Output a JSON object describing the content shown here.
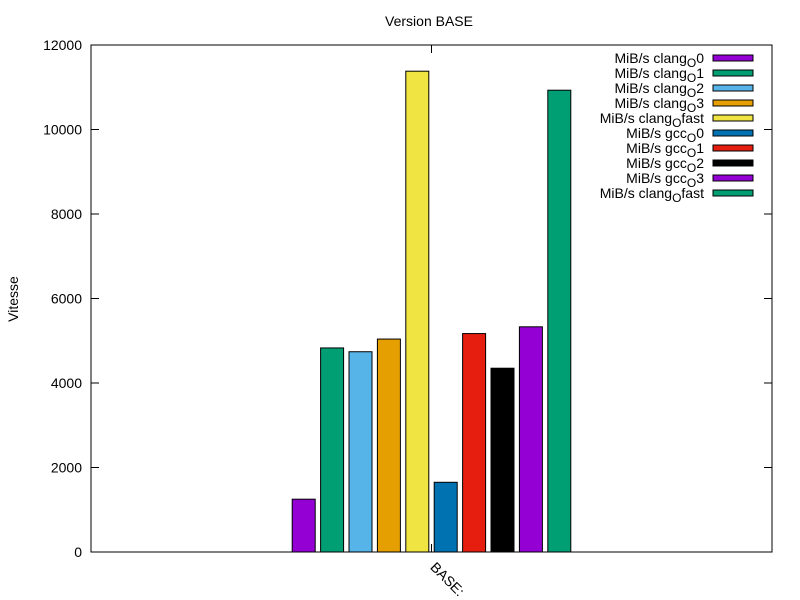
{
  "chart_data": {
    "type": "bar",
    "title": "Version BASE",
    "xlabel": "",
    "ylabel": "Vitesse",
    "categories": [
      "BASE:"
    ],
    "ylim": [
      0,
      12000
    ],
    "yticks": [
      0,
      2000,
      4000,
      6000,
      8000,
      10000,
      12000
    ],
    "ytick_labels": [
      "0",
      "2000",
      "4000",
      "6000",
      "8000",
      "10000",
      "12000"
    ],
    "grid": false,
    "legend_position": "top-right",
    "series": [
      {
        "name": "MiB/s clangO0",
        "legend": {
          "base": "MiB/s clang",
          "sub": "O",
          "suffix": "0"
        },
        "color": "#9400d3",
        "values": [
          1250
        ]
      },
      {
        "name": "MiB/s clangO1",
        "legend": {
          "base": "MiB/s clang",
          "sub": "O",
          "suffix": "1"
        },
        "color": "#009e73",
        "values": [
          4830
        ]
      },
      {
        "name": "MiB/s clangO2",
        "legend": {
          "base": "MiB/s clang",
          "sub": "O",
          "suffix": "2"
        },
        "color": "#56b4e9",
        "values": [
          4740
        ]
      },
      {
        "name": "MiB/s clangO3",
        "legend": {
          "base": "MiB/s clang",
          "sub": "O",
          "suffix": "3"
        },
        "color": "#e69f00",
        "values": [
          5040
        ]
      },
      {
        "name": "MiB/s clangOfast",
        "legend": {
          "base": "MiB/s clang",
          "sub": "O",
          "suffix": "fast"
        },
        "color": "#f0e442",
        "values": [
          11380
        ]
      },
      {
        "name": "MiB/s gccO0",
        "legend": {
          "base": "MiB/s gcc",
          "sub": "O",
          "suffix": "0"
        },
        "color": "#0072b2",
        "values": [
          1650
        ]
      },
      {
        "name": "MiB/s gccO1",
        "legend": {
          "base": "MiB/s gcc",
          "sub": "O",
          "suffix": "1"
        },
        "color": "#e51e10",
        "values": [
          5170
        ]
      },
      {
        "name": "MiB/s gccO2",
        "legend": {
          "base": "MiB/s gcc",
          "sub": "O",
          "suffix": "2"
        },
        "color": "#000000",
        "values": [
          4350
        ]
      },
      {
        "name": "MiB/s gccO3",
        "legend": {
          "base": "MiB/s gcc",
          "sub": "O",
          "suffix": "3"
        },
        "color": "#9400d3",
        "values": [
          5330
        ]
      },
      {
        "name": "MiB/s clangOfast",
        "legend": {
          "base": "MiB/s clang",
          "sub": "O",
          "suffix": "fast"
        },
        "color": "#009e73",
        "values": [
          10930
        ]
      }
    ]
  }
}
